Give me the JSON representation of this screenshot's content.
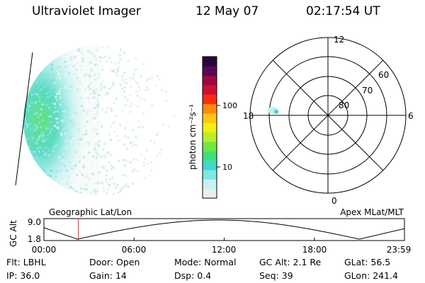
{
  "header": {
    "instrument": "Ultraviolet Imager",
    "date": "12 May 07",
    "time": "02:17:54 UT"
  },
  "colorbar": {
    "unit_label": "photon cm⁻²s⁻¹",
    "tick_labels": [
      "100",
      "10"
    ],
    "colors": [
      "#e8f0ec",
      "#c8f0ee",
      "#7fe6e6",
      "#40d8d0",
      "#3ee07c",
      "#6ee840",
      "#b8ee30",
      "#f2f010",
      "#ffc810",
      "#ff8a10",
      "#ff2a10",
      "#d01030",
      "#a00840",
      "#5a0854",
      "#2a0640"
    ]
  },
  "polar": {
    "lat_labels": [
      "80",
      "70",
      "60"
    ],
    "mlt_labels": {
      "top": "12",
      "right": "6",
      "bottom": "0",
      "left": "18"
    }
  },
  "altitude": {
    "axis_label": "GC Alt",
    "y_top": "9.0",
    "y_bottom": "1.8",
    "left_title": "Geographic Lat/Lon",
    "right_title": "Apex MLat/MLT",
    "time_ticks": [
      "00:00",
      "06:00",
      "12:00",
      "18:00",
      "23:59"
    ],
    "current_time_marker": "02:17:54",
    "marker_color": "#c0392b"
  },
  "status": {
    "row1": [
      {
        "key": "Flt:",
        "value": "LBHL"
      },
      {
        "key": "Door:",
        "value": "Open"
      },
      {
        "key": "Mode:",
        "value": "Normal"
      },
      {
        "key": "GC Alt:",
        "value": "2.1 Re"
      },
      {
        "key": "GLat:",
        "value": "56.5"
      }
    ],
    "row2": [
      {
        "key": "IP:",
        "value": "36.0"
      },
      {
        "key": "Gain:",
        "value": "14"
      },
      {
        "key": "Dsp:",
        "value": "0.4"
      },
      {
        "key": "Seq:",
        "value": "39"
      },
      {
        "key": "GLon:",
        "value": "241.4"
      }
    ]
  }
}
